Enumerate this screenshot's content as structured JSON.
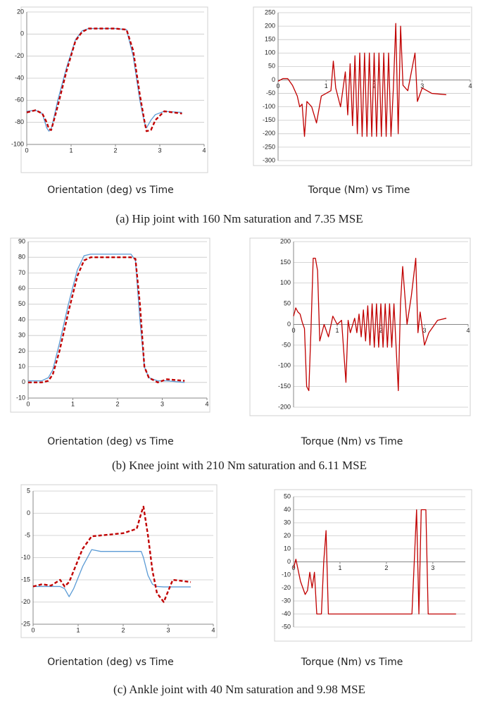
{
  "chart_data": [
    {
      "type": "line",
      "title": "Orientation (deg) vs Time",
      "x": [
        0,
        0.2,
        0.35,
        0.45,
        0.5,
        0.55,
        0.6,
        0.7,
        0.9,
        1.1,
        1.25,
        1.4,
        2.0,
        2.25,
        2.4,
        2.55,
        2.65,
        2.7,
        2.8,
        2.9,
        3.1,
        3.5
      ],
      "series": [
        {
          "color": "#5b9bd5",
          "line_style": "solid",
          "values": [
            -70,
            -69,
            -72,
            -85,
            -88,
            -86,
            -78,
            -60,
            -30,
            -5,
            3,
            5,
            5,
            4,
            -20,
            -60,
            -80,
            -85,
            -78,
            -73,
            -70,
            -71
          ]
        },
        {
          "color": "#c00000",
          "line_style": "dashed",
          "values": [
            -71,
            -69,
            -72,
            -80,
            -86,
            -87,
            -80,
            -65,
            -33,
            -6,
            2,
            5,
            5,
            4,
            -15,
            -55,
            -78,
            -88,
            -87,
            -78,
            -70,
            -72
          ]
        }
      ],
      "xlim": [
        0,
        4
      ],
      "xticks": [
        0,
        1,
        2,
        3,
        4
      ],
      "ylim": [
        -100,
        20
      ],
      "yticks": [
        -100,
        -80,
        -60,
        -40,
        -20,
        0,
        20
      ],
      "grid": true,
      "xaxis_position": "bottom"
    },
    {
      "type": "line",
      "title": "Torque (Nm) vs Time",
      "x": [
        0,
        0.1,
        0.2,
        0.3,
        0.4,
        0.45,
        0.5,
        0.55,
        0.6,
        0.7,
        0.8,
        0.9,
        1.0,
        1.1,
        1.15,
        1.2,
        1.3,
        1.4,
        1.45,
        1.5,
        1.55,
        1.6,
        1.65,
        1.7,
        1.75,
        1.8,
        1.85,
        1.9,
        1.95,
        2.0,
        2.05,
        2.1,
        2.15,
        2.2,
        2.25,
        2.3,
        2.35,
        2.4,
        2.45,
        2.5,
        2.55,
        2.6,
        2.7,
        2.85,
        2.9,
        3.0,
        3.2,
        3.5
      ],
      "series": [
        {
          "color": "#c00000",
          "line_style": "solid",
          "values": [
            -5,
            5,
            5,
            -20,
            -60,
            -100,
            -90,
            -210,
            -80,
            -100,
            -160,
            -60,
            -50,
            -40,
            70,
            -30,
            -100,
            30,
            -130,
            60,
            -170,
            90,
            -200,
            100,
            -210,
            100,
            -210,
            100,
            -210,
            100,
            -210,
            100,
            -210,
            100,
            -210,
            100,
            -210,
            -30,
            210,
            -200,
            200,
            -20,
            -40,
            100,
            -80,
            -30,
            -50,
            -55
          ]
        }
      ],
      "xlim": [
        0,
        4
      ],
      "xticks": [
        0,
        1,
        2,
        3,
        4
      ],
      "ylim": [
        -300,
        250
      ],
      "yticks": [
        -300,
        -250,
        -200,
        -150,
        -100,
        -50,
        0,
        50,
        100,
        150,
        200,
        250
      ],
      "grid": true,
      "xaxis_position": "zero"
    },
    {
      "type": "line",
      "title": "Orientation (deg) vs Time",
      "x": [
        0,
        0.3,
        0.45,
        0.55,
        0.7,
        0.9,
        1.1,
        1.25,
        1.4,
        2.0,
        2.3,
        2.4,
        2.5,
        2.6,
        2.7,
        2.9,
        3.1,
        3.5
      ],
      "series": [
        {
          "color": "#5b9bd5",
          "line_style": "solid",
          "values": [
            1,
            1,
            3,
            8,
            25,
            50,
            72,
            81,
            82,
            82,
            82,
            78,
            40,
            10,
            3,
            1,
            1,
            0
          ]
        },
        {
          "color": "#c00000",
          "line_style": "dashed",
          "values": [
            0,
            0,
            1,
            5,
            20,
            45,
            68,
            78,
            80,
            80,
            80,
            79,
            50,
            10,
            3,
            0,
            2,
            1
          ]
        }
      ],
      "xlim": [
        0,
        4
      ],
      "xticks": [
        0,
        1,
        2,
        3,
        4
      ],
      "ylim": [
        -10,
        90
      ],
      "yticks": [
        -10,
        0,
        10,
        20,
        30,
        40,
        50,
        60,
        70,
        80,
        90
      ],
      "grid": true,
      "xaxis_position": "bottom"
    },
    {
      "type": "line",
      "title": "Torque (Nm) vs Time",
      "x": [
        0,
        0.05,
        0.1,
        0.15,
        0.2,
        0.25,
        0.3,
        0.35,
        0.4,
        0.45,
        0.5,
        0.55,
        0.6,
        0.7,
        0.8,
        0.9,
        1.0,
        1.1,
        1.2,
        1.25,
        1.3,
        1.4,
        1.45,
        1.5,
        1.55,
        1.6,
        1.65,
        1.7,
        1.75,
        1.8,
        1.85,
        1.9,
        1.95,
        2.0,
        2.05,
        2.1,
        2.15,
        2.2,
        2.25,
        2.3,
        2.35,
        2.4,
        2.45,
        2.5,
        2.6,
        2.7,
        2.8,
        2.85,
        2.9,
        3.0,
        3.1,
        3.3,
        3.5
      ],
      "series": [
        {
          "color": "#c00000",
          "line_style": "solid",
          "values": [
            20,
            40,
            30,
            25,
            5,
            -10,
            -150,
            -160,
            -10,
            160,
            160,
            130,
            -40,
            0,
            -30,
            20,
            0,
            10,
            -140,
            10,
            -20,
            15,
            -20,
            25,
            -30,
            35,
            -40,
            45,
            -50,
            50,
            -55,
            50,
            -55,
            50,
            -55,
            50,
            -55,
            50,
            -55,
            50,
            -55,
            -160,
            50,
            140,
            0,
            70,
            160,
            -20,
            30,
            -50,
            -20,
            10,
            15
          ]
        }
      ],
      "xlim": [
        0,
        4
      ],
      "xticks": [
        0,
        1,
        2,
        3,
        4
      ],
      "ylim": [
        -200,
        200
      ],
      "yticks": [
        -200,
        -150,
        -100,
        -50,
        0,
        50,
        100,
        150,
        200
      ],
      "grid": true,
      "xaxis_position": "zero"
    },
    {
      "type": "line",
      "title": "Orientation (deg) vs Time",
      "x": [
        0,
        0.2,
        0.4,
        0.6,
        0.7,
        0.8,
        0.9,
        1.1,
        1.3,
        1.5,
        2.0,
        2.3,
        2.4,
        2.45,
        2.55,
        2.65,
        2.75,
        2.9,
        3.1,
        3.5
      ],
      "series": [
        {
          "color": "#5b9bd5",
          "line_style": "solid",
          "values": [
            -16.5,
            -16.5,
            -16.5,
            -16.5,
            -17,
            -18.8,
            -17,
            -12,
            -8.2,
            -8.6,
            -8.6,
            -8.6,
            -8.6,
            -10,
            -14,
            -16,
            -16.5,
            -16.6,
            -16.6,
            -16.6
          ]
        },
        {
          "color": "#c00000",
          "line_style": "dashed",
          "values": [
            -16.5,
            -16,
            -16.3,
            -15,
            -16.5,
            -15.5,
            -13,
            -8,
            -5.2,
            -5,
            -4.5,
            -3.5,
            0,
            1.5,
            -5,
            -13,
            -18,
            -20,
            -15,
            -15.5
          ]
        }
      ],
      "xlim": [
        0,
        4
      ],
      "xticks": [
        0,
        1,
        2,
        3,
        4
      ],
      "ylim": [
        -25,
        5
      ],
      "yticks": [
        -25,
        -20,
        -15,
        -10,
        -5,
        0,
        5
      ],
      "grid": true,
      "xaxis_position": "bottom"
    },
    {
      "type": "line",
      "title": "Torque (Nm) vs Time",
      "x": [
        0,
        0.05,
        0.15,
        0.25,
        0.3,
        0.35,
        0.4,
        0.45,
        0.5,
        0.6,
        0.65,
        0.7,
        0.75,
        2.55,
        2.65,
        2.7,
        2.75,
        2.85,
        2.9,
        3.5
      ],
      "series": [
        {
          "color": "#c00000",
          "line_style": "solid",
          "values": [
            -5,
            2,
            -15,
            -25,
            -22,
            -8,
            -20,
            -8,
            -40,
            -40,
            0,
            24,
            -40,
            -40,
            40,
            -40,
            40,
            40,
            -40,
            -40
          ]
        }
      ],
      "xlim": [
        0,
        3.7
      ],
      "xticks": [
        0,
        1,
        2,
        3
      ],
      "ylim": [
        -50,
        50
      ],
      "yticks": [
        -50,
        -40,
        -30,
        -20,
        -10,
        0,
        10,
        20,
        30,
        40,
        50
      ],
      "grid": true,
      "xaxis_position": "zero"
    }
  ],
  "captions": [
    "(a) Hip joint with 160 Nm saturation and 7.35 MSE",
    "(b) Knee joint with 210 Nm saturation and 6.11 MSE",
    "(c) Ankle joint with 40 Nm saturation and 9.98 MSE"
  ]
}
